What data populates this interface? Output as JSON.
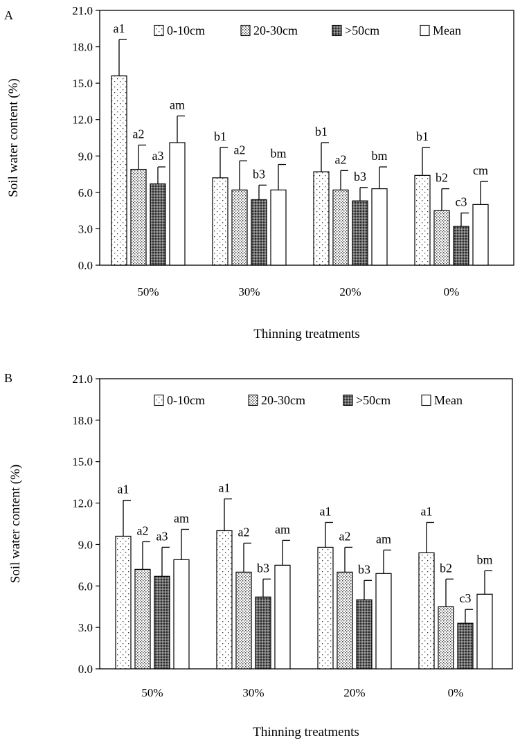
{
  "chart_data": [
    {
      "type": "bar",
      "panel": "A",
      "ylabel": "Soil water content (%)",
      "xlabel": "Thinning treatments",
      "ylim": [
        0,
        21
      ],
      "yticks": [
        "0.0",
        "3.0",
        "6.0",
        "9.0",
        "12.0",
        "15.0",
        "18.0",
        "21.0"
      ],
      "categories": [
        "50%",
        "30%",
        "20%",
        "0%"
      ],
      "legend": [
        "0-10cm",
        "20-30cm",
        ">50cm",
        "Mean"
      ],
      "series": [
        {
          "name": "0-10cm",
          "values": [
            15.6,
            7.2,
            7.7,
            7.4
          ],
          "errors": [
            3.0,
            2.5,
            2.4,
            2.3
          ],
          "labels": [
            "a1",
            "b1",
            "b1",
            "b1"
          ]
        },
        {
          "name": "20-30cm",
          "values": [
            7.9,
            6.2,
            6.2,
            4.5
          ],
          "errors": [
            2.0,
            2.4,
            1.6,
            1.8
          ],
          "labels": [
            "a2",
            "a2",
            "a2",
            "b2"
          ]
        },
        {
          "name": ">50cm",
          "values": [
            6.7,
            5.4,
            5.3,
            3.2
          ],
          "errors": [
            1.4,
            1.2,
            1.1,
            1.1
          ],
          "labels": [
            "a3",
            "b3",
            "b3",
            "c3"
          ]
        },
        {
          "name": "Mean",
          "values": [
            10.1,
            6.2,
            6.3,
            5.0
          ],
          "errors": [
            2.2,
            2.1,
            1.8,
            1.9
          ],
          "labels": [
            "am",
            "bm",
            "bm",
            "cm"
          ]
        }
      ]
    },
    {
      "type": "bar",
      "panel": "B",
      "ylabel": "Soil water content (%)",
      "xlabel": "Thinning treatments",
      "ylim": [
        0,
        21
      ],
      "yticks": [
        "0.0",
        "3.0",
        "6.0",
        "9.0",
        "12.0",
        "15.0",
        "18.0",
        "21.0"
      ],
      "categories": [
        "50%",
        "30%",
        "20%",
        "0%"
      ],
      "legend": [
        "0-10cm",
        "20-30cm",
        ">50cm",
        "Mean"
      ],
      "series": [
        {
          "name": "0-10cm",
          "values": [
            9.6,
            10.0,
            8.8,
            8.4
          ],
          "errors": [
            2.6,
            2.3,
            1.8,
            2.2
          ],
          "labels": [
            "a1",
            "a1",
            "a1",
            "a1"
          ]
        },
        {
          "name": "20-30cm",
          "values": [
            7.2,
            7.0,
            7.0,
            4.5
          ],
          "errors": [
            2.0,
            2.1,
            1.8,
            2.0
          ],
          "labels": [
            "a2",
            "a2",
            "a2",
            "b2"
          ]
        },
        {
          "name": ">50cm",
          "values": [
            6.7,
            5.2,
            5.0,
            3.3
          ],
          "errors": [
            2.1,
            1.3,
            1.4,
            1.0
          ],
          "labels": [
            "a3",
            "b3",
            "b3",
            "c3"
          ]
        },
        {
          "name": "Mean",
          "values": [
            7.9,
            7.5,
            6.9,
            5.4
          ],
          "errors": [
            2.2,
            1.8,
            1.7,
            1.7
          ],
          "labels": [
            "am",
            "am",
            "am",
            "bm"
          ]
        }
      ]
    }
  ]
}
